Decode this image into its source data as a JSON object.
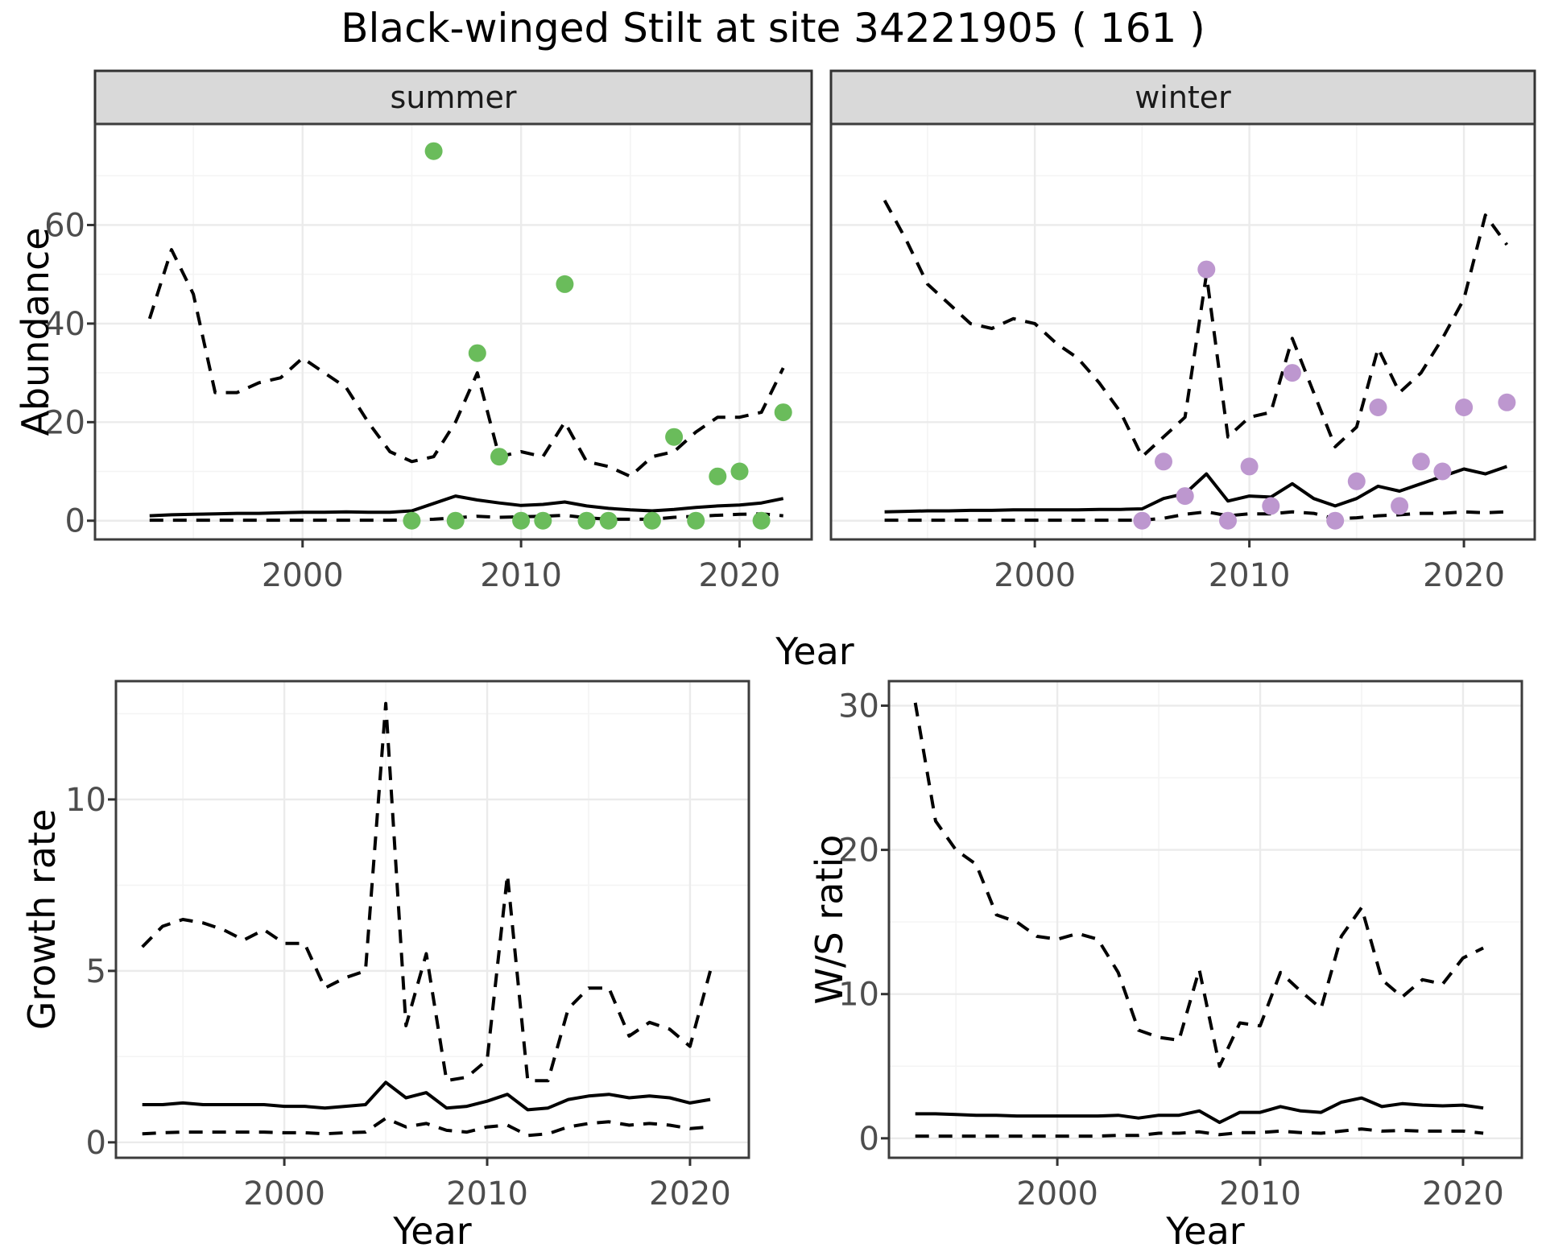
{
  "title": "Black-winged Stilt at site 34221905 ( 161 )",
  "colors": {
    "summer_point": "#6abc5b",
    "winter_point": "#bd97cf",
    "strip_bg": "#d9d9d9",
    "strip_border": "#333333",
    "panel_border": "#3c3c3c",
    "grid_major": "#ebebeb",
    "grid_minor": "#f4f4f4",
    "line": "#000000",
    "tick_mark": "#333333",
    "tick_text": "#4d4d4d"
  },
  "chart_data": [
    {
      "id": "abundance",
      "type": "line",
      "xlabel": "Year",
      "ylabel": "Abundance",
      "x_ticks": [
        2000,
        2010,
        2020
      ],
      "x_minor": [
        1995,
        2005,
        2015
      ],
      "xlim": [
        1990.5,
        2023.3
      ],
      "y_ticks": [
        0,
        20,
        40,
        60
      ],
      "y_minor": [
        10,
        30,
        50,
        70
      ],
      "ylim": [
        -3.8,
        80.5
      ],
      "years": [
        1993,
        1994,
        1995,
        1996,
        1997,
        1998,
        1999,
        2000,
        2001,
        2002,
        2003,
        2004,
        2005,
        2006,
        2007,
        2008,
        2009,
        2010,
        2011,
        2012,
        2013,
        2014,
        2015,
        2016,
        2017,
        2018,
        2019,
        2020,
        2021,
        2022
      ],
      "legend": "solid = modelled mean, dashed = 95% CI, dots = counts",
      "facets": [
        {
          "name": "summer",
          "point_color": "#6abc5b",
          "upper": [
            41,
            55,
            46,
            26,
            26,
            28,
            29,
            33,
            30,
            27,
            20,
            14,
            12,
            13,
            20,
            30,
            13,
            14,
            13,
            20,
            12,
            11,
            9,
            13,
            14,
            18,
            21,
            21,
            22,
            31
          ],
          "mean": [
            1.0,
            1.2,
            1.3,
            1.4,
            1.5,
            1.5,
            1.6,
            1.7,
            1.7,
            1.8,
            1.7,
            1.7,
            2.0,
            3.5,
            5.0,
            4.2,
            3.6,
            3.1,
            3.3,
            3.8,
            3.0,
            2.5,
            2.2,
            2.0,
            2.3,
            2.7,
            3.0,
            3.2,
            3.6,
            4.5
          ],
          "lower": [
            0.1,
            0.1,
            0.1,
            0.1,
            0.1,
            0.1,
            0.1,
            0.1,
            0.1,
            0.1,
            0.1,
            0.1,
            0.15,
            0.3,
            0.6,
            0.9,
            0.7,
            0.8,
            0.9,
            1.1,
            0.6,
            0.3,
            0.3,
            0.3,
            0.7,
            0.9,
            1.1,
            1.3,
            1.4,
            1.0
          ],
          "points": [
            [
              2005,
              0
            ],
            [
              2006,
              75
            ],
            [
              2007,
              0
            ],
            [
              2008,
              34
            ],
            [
              2009,
              13
            ],
            [
              2010,
              0
            ],
            [
              2011,
              0
            ],
            [
              2012,
              48
            ],
            [
              2013,
              0
            ],
            [
              2014,
              0
            ],
            [
              2016,
              0
            ],
            [
              2017,
              17
            ],
            [
              2018,
              0
            ],
            [
              2019,
              9
            ],
            [
              2020,
              10
            ],
            [
              2021,
              0
            ],
            [
              2022,
              22
            ]
          ]
        },
        {
          "name": "winter",
          "point_color": "#bd97cf",
          "upper": [
            65,
            57,
            48,
            44,
            40,
            39,
            41,
            40,
            36,
            33,
            28,
            22,
            13,
            17,
            21,
            50,
            17,
            21,
            22,
            37,
            26,
            15,
            19,
            35,
            26,
            30,
            37,
            45,
            62,
            56
          ],
          "mean": [
            1.8,
            1.9,
            2.0,
            2.0,
            2.1,
            2.1,
            2.2,
            2.2,
            2.2,
            2.2,
            2.3,
            2.3,
            2.4,
            4.5,
            5.5,
            9.5,
            4.0,
            5.0,
            4.8,
            7.5,
            4.5,
            3.0,
            4.5,
            7.0,
            6.0,
            7.5,
            9.0,
            10.5,
            9.5,
            11.0
          ],
          "lower": [
            0.1,
            0.1,
            0.1,
            0.1,
            0.1,
            0.1,
            0.1,
            0.1,
            0.1,
            0.1,
            0.1,
            0.1,
            0.1,
            0.5,
            1.3,
            1.8,
            1.0,
            1.4,
            1.4,
            1.8,
            1.5,
            0.4,
            0.6,
            1.0,
            1.2,
            1.5,
            1.5,
            1.8,
            1.6,
            1.8
          ],
          "points": [
            [
              2005,
              0
            ],
            [
              2006,
              12
            ],
            [
              2007,
              5
            ],
            [
              2008,
              51
            ],
            [
              2009,
              0
            ],
            [
              2010,
              11
            ],
            [
              2011,
              3
            ],
            [
              2012,
              30
            ],
            [
              2014,
              0
            ],
            [
              2015,
              8
            ],
            [
              2016,
              23
            ],
            [
              2017,
              3
            ],
            [
              2018,
              12
            ],
            [
              2019,
              10
            ],
            [
              2020,
              23
            ],
            [
              2022,
              24
            ]
          ]
        }
      ]
    },
    {
      "id": "growth_rate",
      "type": "line",
      "xlabel": "Year",
      "ylabel": "Growth rate",
      "x_ticks": [
        2000,
        2010,
        2020
      ],
      "x_minor": [
        1995,
        2005,
        2015
      ],
      "xlim": [
        1991.7,
        2022.9
      ],
      "y_ticks": [
        0,
        5,
        10
      ],
      "y_minor": [
        2.5,
        7.5,
        12.5
      ],
      "ylim": [
        -0.45,
        13.45
      ],
      "years": [
        1993,
        1994,
        1995,
        1996,
        1997,
        1998,
        1999,
        2000,
        2001,
        2002,
        2003,
        2004,
        2005,
        2006,
        2007,
        2008,
        2009,
        2010,
        2011,
        2012,
        2013,
        2014,
        2015,
        2016,
        2017,
        2018,
        2019,
        2020,
        2021
      ],
      "upper": [
        5.7,
        6.3,
        6.5,
        6.4,
        6.2,
        5.9,
        6.2,
        5.8,
        5.8,
        4.5,
        4.8,
        5.0,
        12.8,
        3.4,
        5.5,
        1.8,
        1.9,
        2.4,
        7.8,
        1.8,
        1.8,
        3.9,
        4.5,
        4.5,
        3.1,
        3.5,
        3.3,
        2.8,
        5.0
      ],
      "mean": [
        1.1,
        1.1,
        1.15,
        1.1,
        1.1,
        1.1,
        1.1,
        1.05,
        1.05,
        1.0,
        1.05,
        1.1,
        1.75,
        1.3,
        1.45,
        1.0,
        1.05,
        1.2,
        1.4,
        0.95,
        1.0,
        1.25,
        1.35,
        1.4,
        1.3,
        1.35,
        1.3,
        1.15,
        1.25
      ],
      "lower": [
        0.25,
        0.28,
        0.3,
        0.3,
        0.3,
        0.3,
        0.3,
        0.28,
        0.28,
        0.25,
        0.28,
        0.3,
        0.7,
        0.45,
        0.55,
        0.35,
        0.3,
        0.45,
        0.5,
        0.2,
        0.25,
        0.45,
        0.55,
        0.6,
        0.5,
        0.55,
        0.5,
        0.4,
        0.45
      ],
      "points": []
    },
    {
      "id": "ws_ratio",
      "type": "line",
      "xlabel": "Year",
      "ylabel": "W/S ratio",
      "x_ticks": [
        2000,
        2010,
        2020
      ],
      "x_minor": [
        1995,
        2005,
        2015
      ],
      "xlim": [
        1991.7,
        2022.9
      ],
      "y_ticks": [
        0,
        10,
        20,
        30
      ],
      "y_minor": [
        5,
        15,
        25
      ],
      "ylim": [
        -1.35,
        31.7
      ],
      "years": [
        1993,
        1994,
        1995,
        1996,
        1997,
        1998,
        1999,
        2000,
        2001,
        2002,
        2003,
        2004,
        2005,
        2006,
        2007,
        2008,
        2009,
        2010,
        2011,
        2012,
        2013,
        2014,
        2015,
        2016,
        2017,
        2018,
        2019,
        2020,
        2021
      ],
      "upper": [
        30.2,
        22,
        20,
        19,
        15.5,
        15,
        14,
        13.8,
        14.2,
        13.8,
        11.5,
        7.5,
        7,
        6.8,
        11.7,
        5,
        8,
        7.8,
        11.5,
        10.2,
        9,
        14,
        16,
        11,
        9.8,
        11,
        10.7,
        12.5,
        13.2
      ],
      "mean": [
        1.7,
        1.7,
        1.65,
        1.6,
        1.6,
        1.55,
        1.55,
        1.55,
        1.55,
        1.55,
        1.6,
        1.4,
        1.6,
        1.6,
        1.9,
        1.1,
        1.8,
        1.8,
        2.2,
        1.9,
        1.8,
        2.5,
        2.8,
        2.2,
        2.4,
        2.3,
        2.25,
        2.3,
        2.1
      ],
      "lower": [
        0.15,
        0.15,
        0.15,
        0.15,
        0.15,
        0.15,
        0.15,
        0.15,
        0.15,
        0.15,
        0.2,
        0.2,
        0.35,
        0.35,
        0.45,
        0.25,
        0.4,
        0.4,
        0.5,
        0.4,
        0.35,
        0.5,
        0.65,
        0.5,
        0.55,
        0.5,
        0.5,
        0.5,
        0.35
      ],
      "points": []
    }
  ]
}
